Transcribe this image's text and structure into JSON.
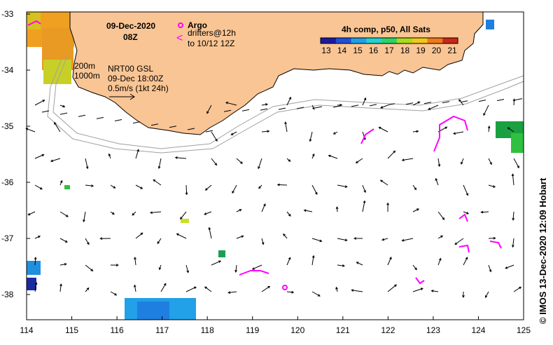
{
  "map": {
    "date": "09-Dec-2020",
    "time": "08Z",
    "legend_argo": "Argo",
    "legend_drifters_line1": "drifters@12h",
    "legend_drifters_line2": "to 10/12 12Z",
    "colorbar_title": "4h comp, p50, All Sats",
    "colorbar_ticks": [
      "13",
      "14",
      "15",
      "16",
      "17",
      "18",
      "19",
      "20",
      "21"
    ],
    "colorbar_colors": [
      "#1a1aa0",
      "#1f4fd8",
      "#1f9fe8",
      "#22d2d0",
      "#2ad46a",
      "#a8dc1a",
      "#f0c818",
      "#f07a18",
      "#c8281a"
    ],
    "isobath_1": "200m",
    "isobath_2": "1000m",
    "product_line1": "NRT00 GSL",
    "product_line2": "09-Dec 18:00Z",
    "scale_label": "0.5m/s (1kt 24h)",
    "credit": "© IMOS 13-Dec-2020 12:09 Hobart",
    "x_ticks": [
      "114",
      "115",
      "116",
      "117",
      "118",
      "119",
      "120",
      "121",
      "122",
      "123",
      "124",
      "125"
    ],
    "y_ticks": [
      "-33",
      "-34",
      "-35",
      "-36",
      "-37",
      "-38"
    ],
    "colors": {
      "land": "#f9c594",
      "argo": "#ff00ff",
      "drifter": "#ff00ff",
      "isobath": "#a0a0a0"
    }
  }
}
